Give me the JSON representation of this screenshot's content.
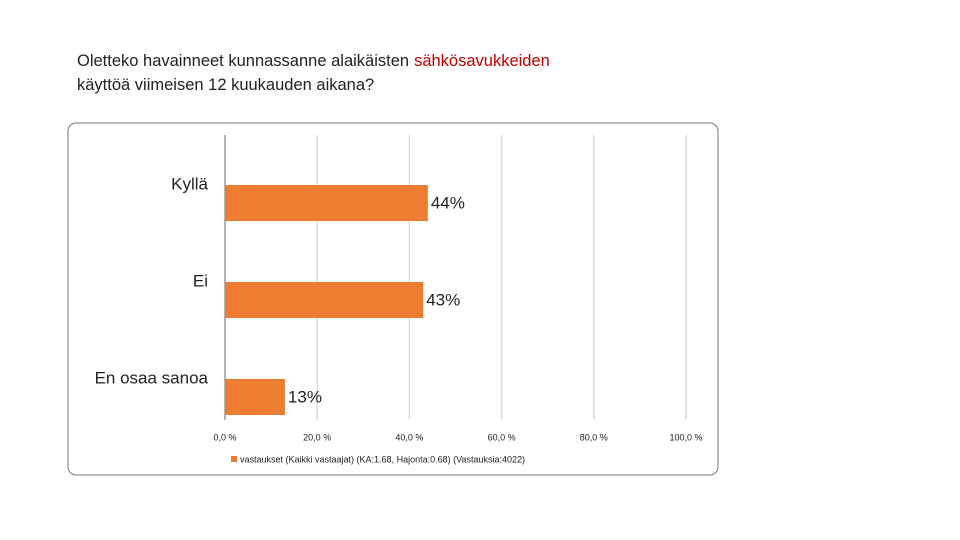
{
  "chart_data": {
    "type": "bar",
    "orientation": "horizontal",
    "title": [
      "Oletteko havainneet kunnassanne alaikäisten",
      "sähkösavukkeiden",
      "käyttöä viimeisen 12 kuukauden aikana?"
    ],
    "title_highlight_color": "#c00000",
    "categories": [
      "Kyllä",
      "Ei",
      "En osaa sanoa"
    ],
    "series": [
      {
        "name": "vastaukset (Kaikki vastaajat) (KA:1.68, Hajonta:0.68) (Vastauksia:4022)",
        "color": "#ed7d31",
        "values": [
          44,
          43,
          13
        ],
        "value_labels": [
          "44%",
          "43%",
          "13%"
        ]
      }
    ],
    "xlim": [
      0,
      100
    ],
    "xticks": [
      {
        "value": 0,
        "label": "0,0 %"
      },
      {
        "value": 20,
        "label": "20,0 %"
      },
      {
        "value": 40,
        "label": "40,0 %"
      },
      {
        "value": 60,
        "label": "60,0 %"
      },
      {
        "value": 80,
        "label": "80,0 %"
      },
      {
        "value": 100,
        "label": "100,0 %"
      }
    ],
    "grid": true,
    "legend": "bottom"
  }
}
